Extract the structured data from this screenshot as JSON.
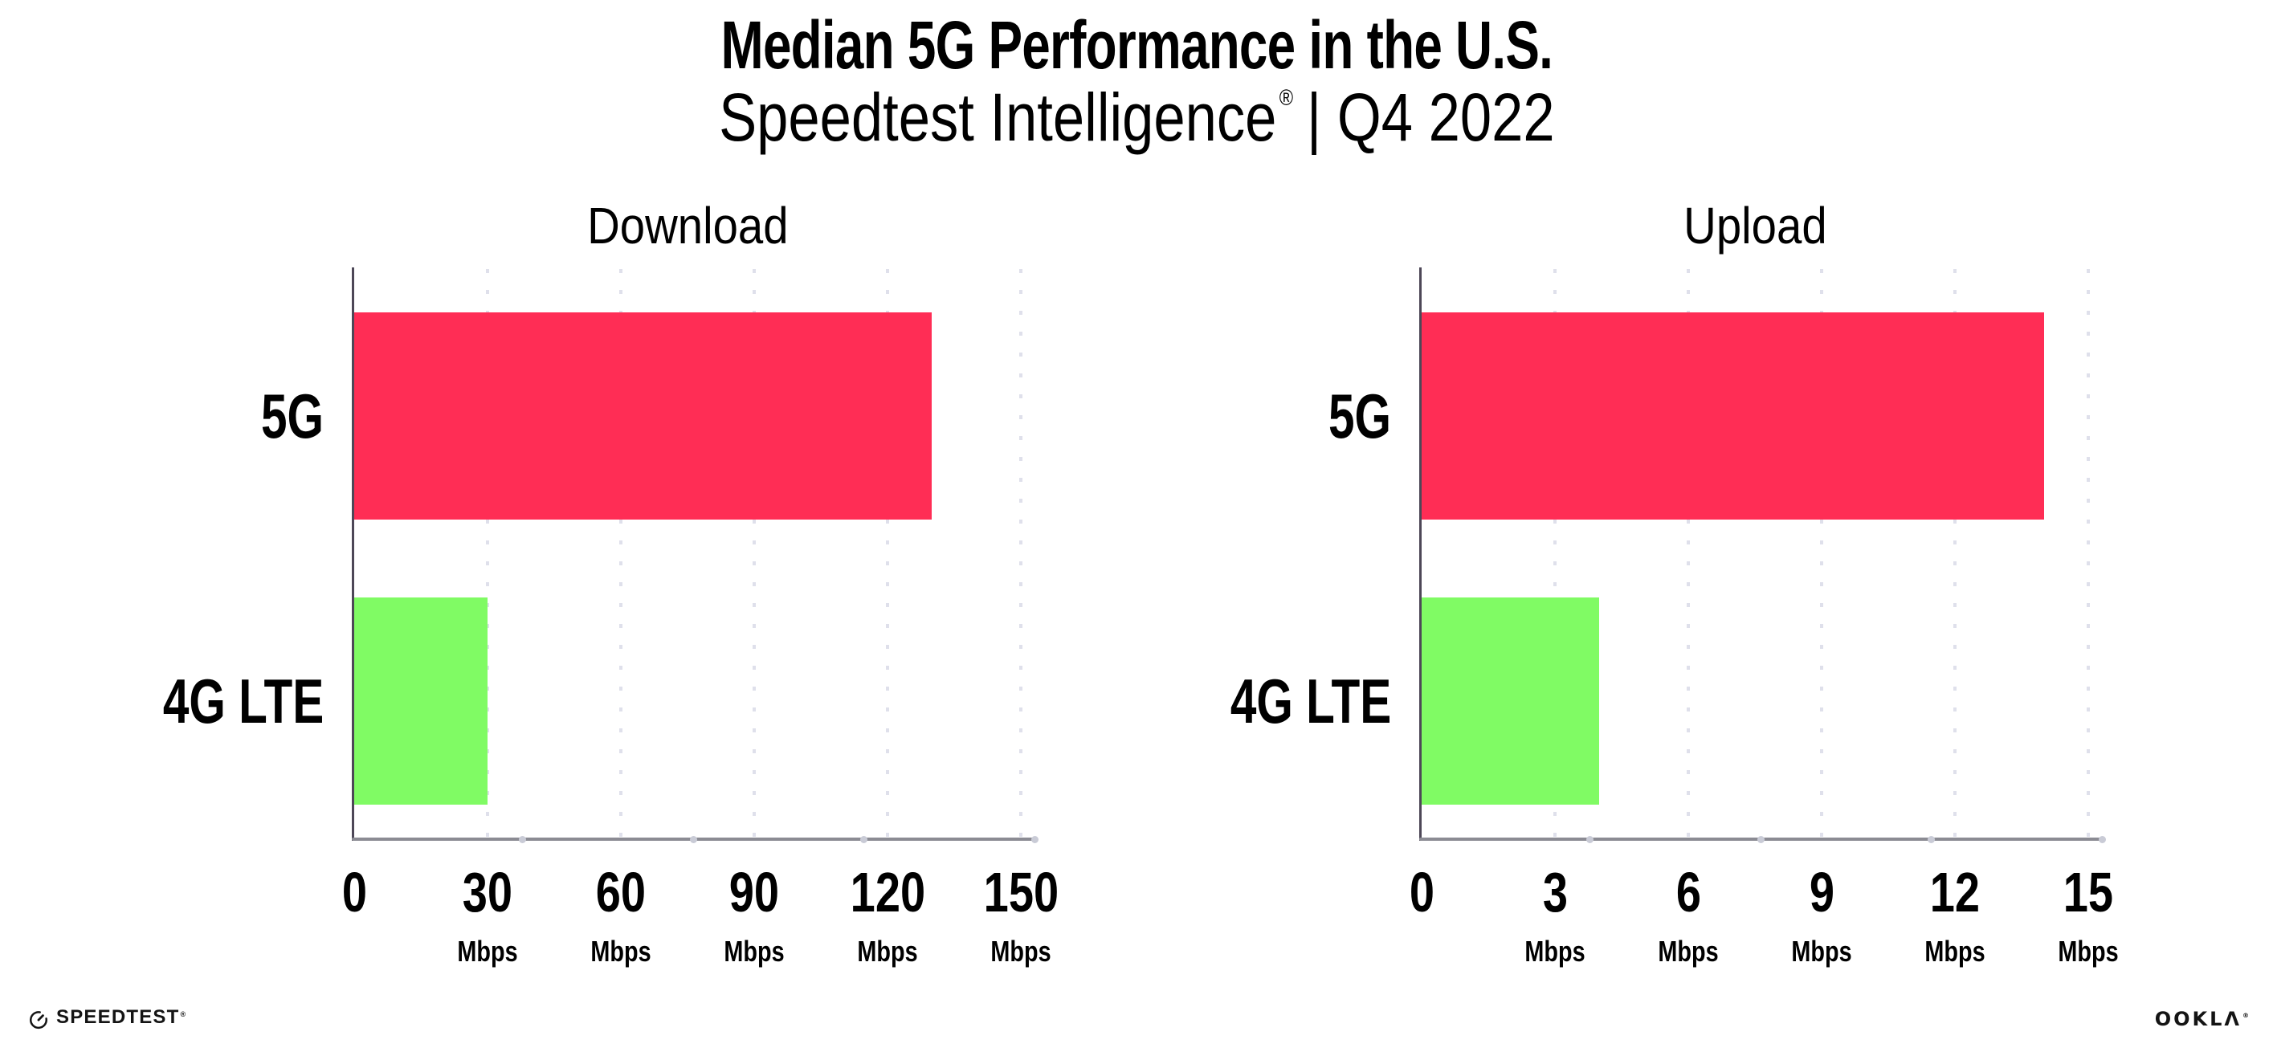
{
  "header": {
    "title": "Median 5G Performance in the U.S.",
    "subtitle_brand": "Speedtest Intelligence",
    "subtitle_reg": "®",
    "subtitle_rest": "| Q4 2022"
  },
  "chart_data": [
    {
      "type": "bar",
      "orientation": "horizontal",
      "title": "Download",
      "categories": [
        "5G",
        "4G LTE"
      ],
      "values": [
        130,
        30
      ],
      "unit": "Mbps",
      "xlim": [
        0,
        150
      ],
      "xticks": [
        0,
        30,
        60,
        90,
        120,
        150
      ],
      "tick_unit": "Mbps",
      "bar_colors": [
        "#FF2D55",
        "#80FB64"
      ],
      "grid": true,
      "legend": "none"
    },
    {
      "type": "bar",
      "orientation": "horizontal",
      "title": "Upload",
      "categories": [
        "5G",
        "4G LTE"
      ],
      "values": [
        14,
        4
      ],
      "unit": "Mbps",
      "xlim": [
        0,
        15
      ],
      "xticks": [
        0,
        3,
        6,
        9,
        12,
        15
      ],
      "tick_unit": "Mbps",
      "bar_colors": [
        "#FF2D55",
        "#80FB64"
      ],
      "grid": true,
      "legend": "none"
    }
  ],
  "footer": {
    "speedtest_label": "SPEEDTEST",
    "speedtest_reg": "®",
    "ookla_label": "OOKLΛ",
    "ookla_reg": "®"
  },
  "colors": {
    "bar_5g": "#FF2D55",
    "bar_4g_lte": "#80FB64",
    "gridline": "#DFE0EB",
    "x_axis": "#8B8B93",
    "y_axis": "#4D4757",
    "axis_dot": "#C9CBD6",
    "text": "#000000"
  }
}
